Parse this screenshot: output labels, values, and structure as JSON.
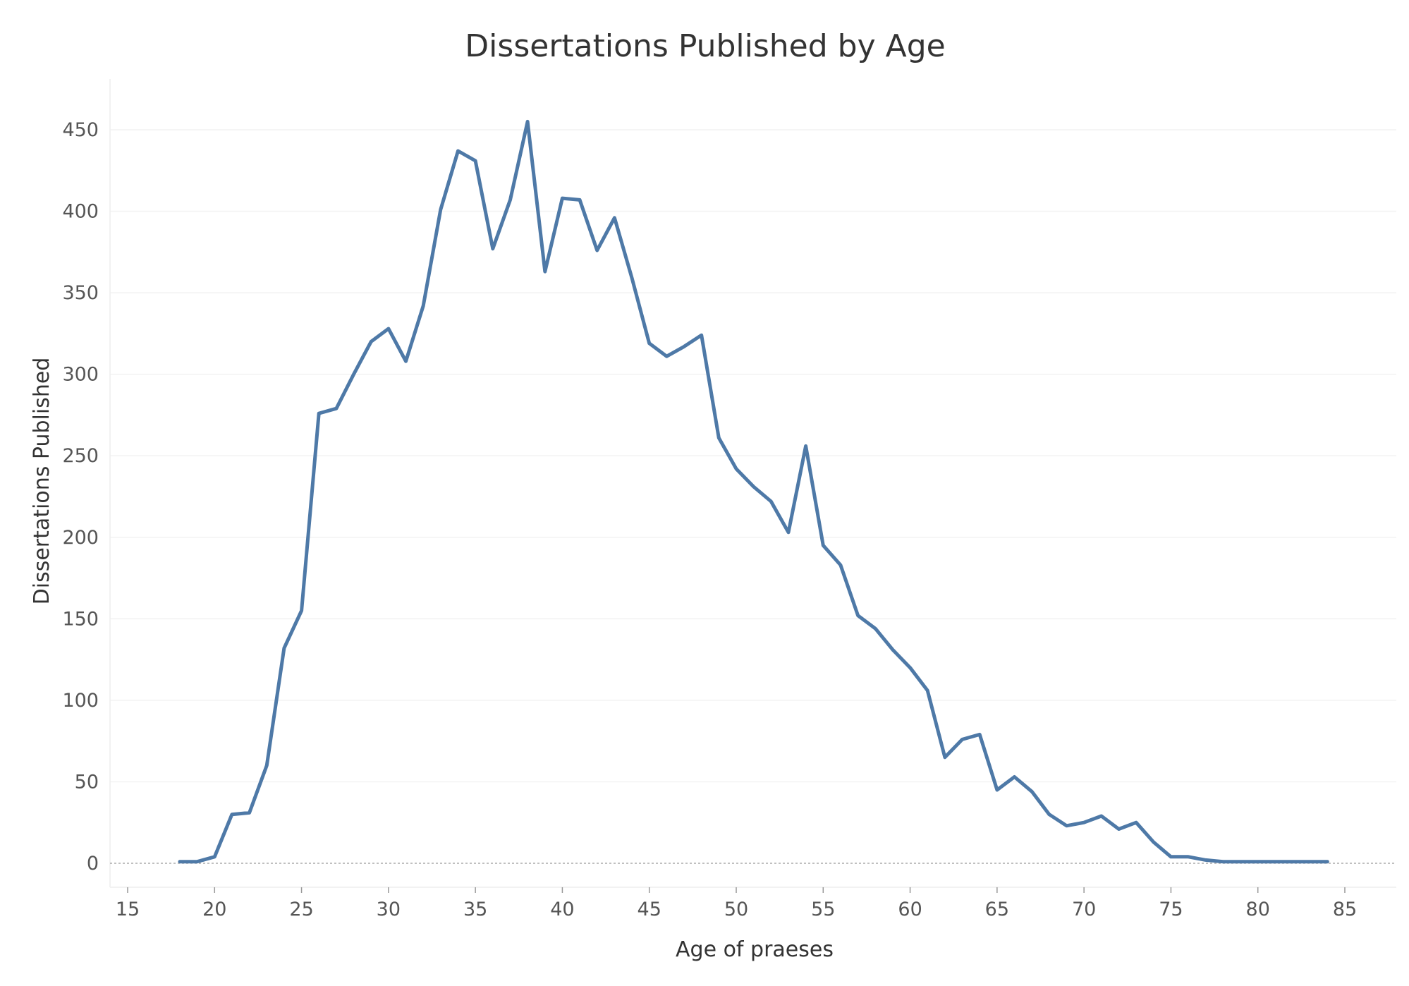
{
  "chart_data": {
    "type": "line",
    "title": "Dissertations Published by Age",
    "xlabel": "Age of praeses",
    "ylabel": "Dissertations Published",
    "xlim": [
      14,
      88
    ],
    "ylim": [
      -15,
      480
    ],
    "x_ticks": [
      15,
      20,
      25,
      30,
      35,
      40,
      45,
      50,
      55,
      60,
      65,
      70,
      75,
      80,
      85
    ],
    "y_ticks": [
      0,
      50,
      100,
      150,
      200,
      250,
      300,
      350,
      400,
      450
    ],
    "grid": true,
    "zero_line": true,
    "series": [
      {
        "color": "#4e79a7",
        "x": [
          18,
          19,
          20,
          21,
          22,
          23,
          24,
          25,
          26,
          27,
          28,
          29,
          30,
          31,
          32,
          33,
          34,
          35,
          36,
          37,
          38,
          39,
          40,
          41,
          42,
          43,
          44,
          45,
          46,
          47,
          48,
          49,
          50,
          51,
          52,
          53,
          54,
          55,
          56,
          57,
          58,
          59,
          60,
          61,
          62,
          63,
          64,
          65,
          66,
          67,
          68,
          69,
          70,
          71,
          72,
          73,
          74,
          75,
          76,
          77,
          78,
          79,
          80,
          81,
          82,
          83,
          84
        ],
        "y": [
          1,
          1,
          4,
          30,
          31,
          60,
          132,
          155,
          276,
          279,
          300,
          320,
          328,
          308,
          342,
          401,
          437,
          431,
          377,
          407,
          455,
          363,
          408,
          407,
          376,
          396,
          359,
          319,
          311,
          317,
          324,
          261,
          242,
          231,
          222,
          203,
          256,
          195,
          183,
          152,
          144,
          131,
          120,
          106,
          65,
          76,
          79,
          45,
          53,
          44,
          30,
          23,
          25,
          29,
          21,
          25,
          13,
          4,
          4,
          2,
          1,
          1,
          1,
          1,
          1,
          1,
          1
        ]
      }
    ]
  }
}
